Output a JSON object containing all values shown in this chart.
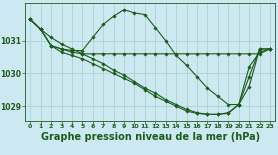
{
  "background_color": "#cce8f0",
  "grid_color": "#aacccc",
  "line_color": "#1e5c1e",
  "xlabel": "Graphe pression niveau de la mer (hPa)",
  "xlabel_fontsize": 7.0,
  "xlim": [
    -0.5,
    23.5
  ],
  "ylim": [
    1028.55,
    1032.15
  ],
  "yticks": [
    1029,
    1030,
    1031
  ],
  "xticks": [
    0,
    1,
    2,
    3,
    4,
    5,
    6,
    7,
    8,
    9,
    10,
    11,
    12,
    13,
    14,
    15,
    16,
    17,
    18,
    19,
    20,
    21,
    22,
    23
  ],
  "series1_x": [
    0,
    1,
    2,
    3,
    4,
    5,
    6,
    7,
    8,
    9,
    10,
    11,
    12,
    13,
    14,
    15,
    16,
    17,
    18,
    19,
    20,
    21,
    22,
    23
  ],
  "series1_y": [
    1031.65,
    1031.35,
    1030.85,
    1030.75,
    1030.7,
    1030.7,
    1031.1,
    1031.5,
    1031.75,
    1031.95,
    1031.85,
    1031.8,
    1031.4,
    1031.0,
    1030.55,
    1030.25,
    1029.9,
    1029.55,
    1029.3,
    1029.05,
    1029.05,
    1030.2,
    1030.65,
    1030.75
  ],
  "series2_x": [
    0,
    1,
    2,
    3,
    4,
    5,
    6,
    7,
    8,
    9,
    10,
    11,
    12,
    13,
    14,
    15,
    16,
    17,
    18,
    19,
    20,
    21,
    22,
    23
  ],
  "series2_y": [
    1031.65,
    1031.35,
    1030.85,
    1030.75,
    1030.65,
    1030.6,
    1030.6,
    1030.6,
    1030.6,
    1030.6,
    1030.6,
    1030.6,
    1030.6,
    1030.6,
    1030.6,
    1030.6,
    1030.6,
    1030.6,
    1030.6,
    1030.6,
    1030.6,
    1030.6,
    1030.6,
    1030.75
  ],
  "series3_x": [
    0,
    1,
    2,
    3,
    4,
    5,
    6,
    7,
    8,
    9,
    10,
    11,
    12,
    13,
    14,
    15,
    16,
    17,
    18,
    19,
    20,
    21,
    22,
    23
  ],
  "series3_y": [
    1031.65,
    1031.35,
    1031.1,
    1030.9,
    1030.75,
    1030.6,
    1030.45,
    1030.3,
    1030.1,
    1029.95,
    1029.75,
    1029.55,
    1029.4,
    1029.2,
    1029.05,
    1028.9,
    1028.8,
    1028.75,
    1028.75,
    1028.8,
    1029.05,
    1029.6,
    1030.75,
    1030.75
  ],
  "series4_x": [
    0,
    1,
    2,
    3,
    4,
    5,
    6,
    7,
    8,
    9,
    10,
    11,
    12,
    13,
    14,
    15,
    16,
    17,
    18,
    19,
    20,
    21,
    22,
    23
  ],
  "series4_y": [
    1031.65,
    1031.35,
    1030.85,
    1030.65,
    1030.55,
    1030.45,
    1030.3,
    1030.15,
    1030.0,
    1029.85,
    1029.7,
    1029.5,
    1029.3,
    1029.15,
    1029.0,
    1028.85,
    1028.78,
    1028.75,
    1028.75,
    1028.78,
    1029.05,
    1029.9,
    1030.75,
    1030.75
  ]
}
